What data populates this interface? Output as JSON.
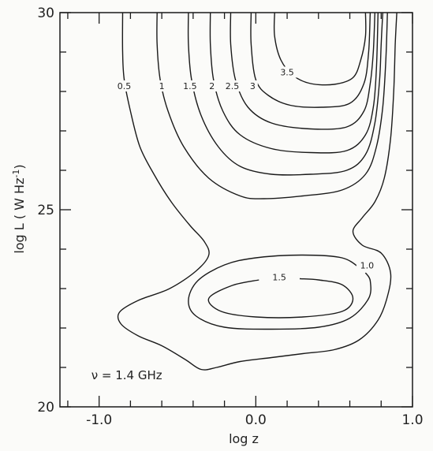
{
  "chart_data": {
    "type": "contour",
    "xlabel": "log z",
    "ylabel": "log L ( W Hz",
    "ylabel_sup": "-1",
    "ylabel_end": ")",
    "xlim": [
      -1.25,
      1.0
    ],
    "ylim": [
      20,
      30
    ],
    "x_ticks": [
      {
        "value": -1.0,
        "label": "-1.0"
      },
      {
        "value": 0.0,
        "label": "0.0"
      },
      {
        "value": 1.0,
        "label": "1.0"
      }
    ],
    "y_ticks": [
      {
        "value": 20,
        "label": "20"
      },
      {
        "value": 25,
        "label": "25"
      },
      {
        "value": 30,
        "label": "30"
      }
    ],
    "annotation": {
      "text": "ν = 1.4 GHz",
      "x": -1.05,
      "y": 20.7
    },
    "contours": [
      {
        "level": "0.5",
        "label_at": [
          -0.84,
          28.1
        ],
        "points": [
          [
            -0.85,
            30
          ],
          [
            -0.85,
            29.0
          ],
          [
            -0.84,
            28.3
          ],
          [
            -0.8,
            27.5
          ],
          [
            -0.74,
            26.6
          ],
          [
            -0.65,
            25.9
          ],
          [
            -0.54,
            25.2
          ],
          [
            -0.42,
            24.6
          ],
          [
            -0.33,
            24.2
          ],
          [
            -0.3,
            23.85
          ],
          [
            -0.38,
            23.45
          ],
          [
            -0.55,
            23.0
          ],
          [
            -0.75,
            22.7
          ],
          [
            -0.87,
            22.4
          ],
          [
            -0.86,
            22.1
          ],
          [
            -0.75,
            21.8
          ],
          [
            -0.6,
            21.55
          ],
          [
            -0.45,
            21.2
          ],
          [
            -0.35,
            20.95
          ],
          [
            -0.25,
            21.0
          ],
          [
            -0.1,
            21.15
          ],
          [
            0.1,
            21.25
          ],
          [
            0.3,
            21.35
          ],
          [
            0.5,
            21.45
          ],
          [
            0.66,
            21.7
          ],
          [
            0.78,
            22.2
          ],
          [
            0.84,
            22.8
          ],
          [
            0.86,
            23.4
          ],
          [
            0.8,
            23.9
          ],
          [
            0.68,
            24.1
          ],
          [
            0.62,
            24.45
          ],
          [
            0.68,
            24.8
          ],
          [
            0.76,
            25.2
          ],
          [
            0.82,
            25.8
          ],
          [
            0.86,
            26.8
          ],
          [
            0.88,
            28.0
          ],
          [
            0.89,
            29.2
          ],
          [
            0.9,
            30
          ]
        ]
      },
      {
        "level": "1",
        "label_at": [
          -0.6,
          28.1
        ],
        "points": [
          [
            -0.63,
            30
          ],
          [
            -0.63,
            29.2
          ],
          [
            -0.61,
            28.3
          ],
          [
            -0.56,
            27.5
          ],
          [
            -0.46,
            26.6
          ],
          [
            -0.3,
            25.8
          ],
          [
            -0.1,
            25.35
          ],
          [
            0.05,
            25.28
          ],
          [
            0.3,
            25.35
          ],
          [
            0.55,
            25.5
          ],
          [
            0.7,
            25.9
          ],
          [
            0.77,
            26.6
          ],
          [
            0.81,
            27.6
          ],
          [
            0.83,
            28.8
          ],
          [
            0.84,
            30
          ]
        ]
      },
      {
        "level": "1.5",
        "label_at": [
          -0.42,
          28.1
        ],
        "points": [
          [
            -0.43,
            30
          ],
          [
            -0.43,
            29.2
          ],
          [
            -0.41,
            28.3
          ],
          [
            -0.35,
            27.4
          ],
          [
            -0.24,
            26.6
          ],
          [
            -0.1,
            26.1
          ],
          [
            0.1,
            25.9
          ],
          [
            0.35,
            25.9
          ],
          [
            0.58,
            26.0
          ],
          [
            0.7,
            26.4
          ],
          [
            0.76,
            27.2
          ],
          [
            0.79,
            28.3
          ],
          [
            0.8,
            29.2
          ],
          [
            0.81,
            30
          ]
        ]
      },
      {
        "level": "2",
        "label_at": [
          -0.28,
          28.1
        ],
        "points": [
          [
            -0.29,
            30
          ],
          [
            -0.29,
            29.2
          ],
          [
            -0.27,
            28.3
          ],
          [
            -0.21,
            27.5
          ],
          [
            -0.1,
            26.9
          ],
          [
            0.1,
            26.55
          ],
          [
            0.35,
            26.45
          ],
          [
            0.58,
            26.5
          ],
          [
            0.7,
            26.9
          ],
          [
            0.75,
            27.6
          ],
          [
            0.77,
            28.6
          ],
          [
            0.78,
            30
          ]
        ]
      },
      {
        "level": "2.5",
        "label_at": [
          -0.15,
          28.1
        ],
        "points": [
          [
            -0.16,
            30
          ],
          [
            -0.16,
            29.2
          ],
          [
            -0.13,
            28.3
          ],
          [
            -0.05,
            27.6
          ],
          [
            0.1,
            27.2
          ],
          [
            0.35,
            27.05
          ],
          [
            0.58,
            27.1
          ],
          [
            0.69,
            27.5
          ],
          [
            0.73,
            28.2
          ],
          [
            0.75,
            29.0
          ],
          [
            0.76,
            30
          ]
        ]
      },
      {
        "level": "3",
        "label_at": [
          -0.02,
          28.1
        ],
        "points": [
          [
            -0.03,
            30
          ],
          [
            -0.03,
            29.2
          ],
          [
            0.0,
            28.3
          ],
          [
            0.08,
            27.9
          ],
          [
            0.22,
            27.65
          ],
          [
            0.42,
            27.6
          ],
          [
            0.6,
            27.7
          ],
          [
            0.69,
            28.2
          ],
          [
            0.72,
            29.0
          ],
          [
            0.73,
            30
          ]
        ]
      },
      {
        "level": "3.5",
        "label_at": [
          0.2,
          28.45
        ],
        "points": [
          [
            0.12,
            30
          ],
          [
            0.12,
            29.4
          ],
          [
            0.16,
            28.8
          ],
          [
            0.24,
            28.4
          ],
          [
            0.35,
            28.2
          ],
          [
            0.5,
            28.18
          ],
          [
            0.62,
            28.35
          ],
          [
            0.67,
            28.8
          ],
          [
            0.7,
            29.4
          ],
          [
            0.7,
            30
          ]
        ]
      },
      {
        "level": "1.0",
        "label_at": [
          0.71,
          23.55
        ],
        "points": [
          [
            0.67,
            23.5
          ],
          [
            0.55,
            23.78
          ],
          [
            0.3,
            23.85
          ],
          [
            0.0,
            23.78
          ],
          [
            -0.2,
            23.6
          ],
          [
            -0.37,
            23.2
          ],
          [
            -0.43,
            22.7
          ],
          [
            -0.38,
            22.3
          ],
          [
            -0.2,
            22.02
          ],
          [
            0.1,
            21.97
          ],
          [
            0.4,
            22.02
          ],
          [
            0.6,
            22.25
          ],
          [
            0.72,
            22.75
          ],
          [
            0.73,
            23.2
          ],
          [
            0.7,
            23.4
          ]
        ]
      },
      {
        "level": "1.5",
        "label_at": [
          0.15,
          23.25
        ],
        "points": [
          [
            0.02,
            23.22
          ],
          [
            -0.15,
            23.08
          ],
          [
            -0.3,
            22.75
          ],
          [
            -0.22,
            22.42
          ],
          [
            0.0,
            22.28
          ],
          [
            0.3,
            22.28
          ],
          [
            0.55,
            22.42
          ],
          [
            0.62,
            22.75
          ],
          [
            0.55,
            23.1
          ],
          [
            0.4,
            23.22
          ],
          [
            0.28,
            23.25
          ]
        ]
      }
    ]
  }
}
